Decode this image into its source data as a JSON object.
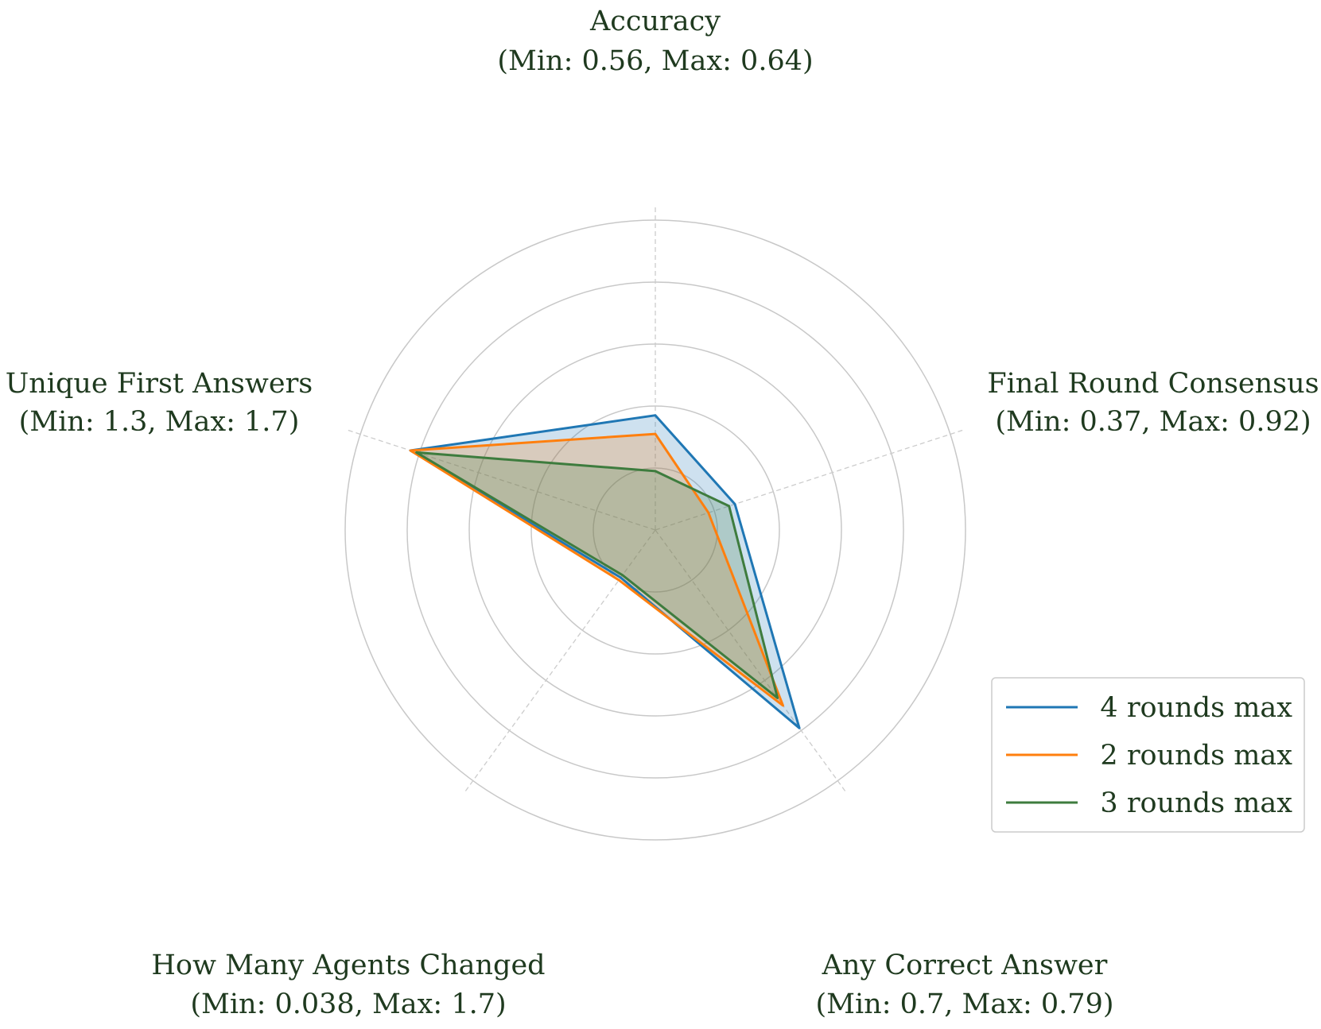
{
  "chart_data": {
    "type": "radar",
    "title": "",
    "axes": [
      {
        "name": "Accuracy",
        "range_label": "(Min: 0.56, Max: 0.64)",
        "min": 0.56,
        "max": 0.64
      },
      {
        "name": "Final Round Consensus",
        "range_label": "(Min: 0.37, Max: 0.92)",
        "min": 0.37,
        "max": 0.92
      },
      {
        "name": "Any Correct Answer",
        "range_label": "(Min: 0.7, Max: 0.79)",
        "min": 0.7,
        "max": 0.79
      },
      {
        "name": "How Many Agents Changed",
        "range_label": "(Min: 0.038, Max: 1.7)",
        "min": 0.038,
        "max": 1.7
      },
      {
        "name": "Unique First Answers",
        "range_label": "(Min: 1.3, Max: 1.7)",
        "min": 1.3,
        "max": 1.7
      }
    ],
    "normalized_range": [
      0,
      1
    ],
    "radial_gridlines": [
      0.2,
      0.4,
      0.6,
      0.8,
      1.0
    ],
    "series": [
      {
        "name": "4 rounds max",
        "color": "#1f77b4",
        "normalized_values": [
          0.37,
          0.27,
          0.79,
          0.19,
          0.83
        ],
        "values": [
          0.5896,
          0.5185,
          0.7711,
          0.3538,
          1.632
        ]
      },
      {
        "name": "2 rounds max",
        "color": "#ff7f0e",
        "normalized_values": [
          0.31,
          0.18,
          0.7,
          0.2,
          0.83
        ],
        "values": [
          0.5848,
          0.469,
          0.763,
          0.3704,
          1.632
        ]
      },
      {
        "name": "3 rounds max",
        "color": "#3e7c3e",
        "normalized_values": [
          0.19,
          0.25,
          0.67,
          0.18,
          0.81
        ],
        "values": [
          0.5752,
          0.5075,
          0.7603,
          0.3372,
          1.624
        ]
      }
    ],
    "grid": true,
    "legend_position": "lower-right"
  }
}
